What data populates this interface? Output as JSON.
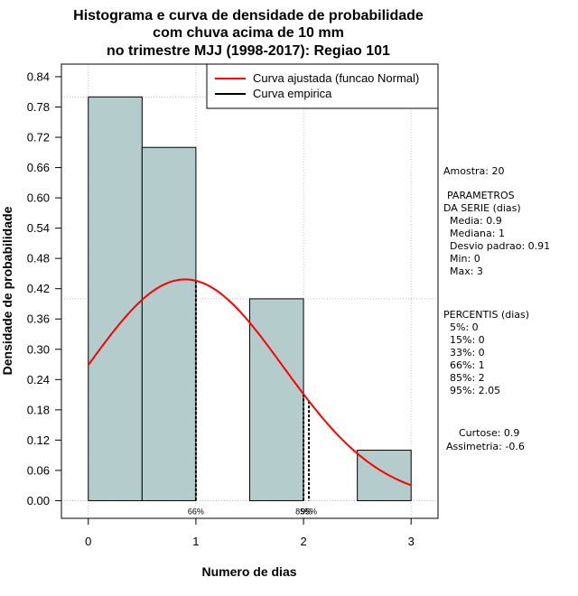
{
  "chart_data": {
    "type": "bar",
    "title": [
      "Histograma e curva de densidade de probabilidade",
      "com chuva acima de 10 mm",
      "no trimestre MJJ (1998-2017): Regiao 101"
    ],
    "xlabel": "Numero de dias",
    "ylabel": "Densidade de probabilidade",
    "xlim": [
      -0.25,
      3.25
    ],
    "ylim": [
      -0.035,
      0.865
    ],
    "x_ticks": [
      "0",
      "1",
      "2",
      "3"
    ],
    "y_ticks": [
      "0.00",
      "0.06",
      "0.12",
      "0.18",
      "0.24",
      "0.30",
      "0.36",
      "0.42",
      "0.48",
      "0.54",
      "0.60",
      "0.66",
      "0.72",
      "0.78",
      "0.84"
    ],
    "grid": true,
    "bins": [
      {
        "x0": 0.0,
        "x1": 0.5,
        "density": 0.8
      },
      {
        "x0": 0.5,
        "x1": 1.0,
        "density": 0.7
      },
      {
        "x0": 1.5,
        "x1": 2.0,
        "density": 0.4
      },
      {
        "x0": 2.5,
        "x1": 3.0,
        "density": 0.1
      }
    ],
    "normal_fit": {
      "mean": 0.9,
      "sd": 0.91
    },
    "legend": [
      "Curva ajustada (funcao Normal)",
      "Curva empirica"
    ],
    "legend_position": "top-right",
    "colors": {
      "bar_fill": "#b4cccc",
      "fit_curve": "#ff0000",
      "grid": "#c0c0c0"
    },
    "percentile_lines": [
      {
        "x": 1.0,
        "label": "66%"
      },
      {
        "x": 2.0,
        "label": "85%"
      },
      {
        "x": 2.05,
        "label": "95%"
      }
    ]
  },
  "side_panel": {
    "amostra": "Amostra: 20",
    "param_lines": [
      "PARAMETROS",
      "DA SERIE (dias)",
      "  Media: 0.9",
      "  Mediana: 1",
      "  Desvio padrao: 0.91",
      "  Min: 0",
      "  Max: 3"
    ],
    "pct_lines": [
      "PERCENTIS (dias)",
      "  5%: 0",
      "  15%: 0",
      "  33%: 0",
      "  66%: 1",
      "  85%: 2",
      "  95%: 2.05"
    ],
    "curtose": "Curtose: 0.9",
    "assimetria": "Assimetria: -0.6"
  }
}
